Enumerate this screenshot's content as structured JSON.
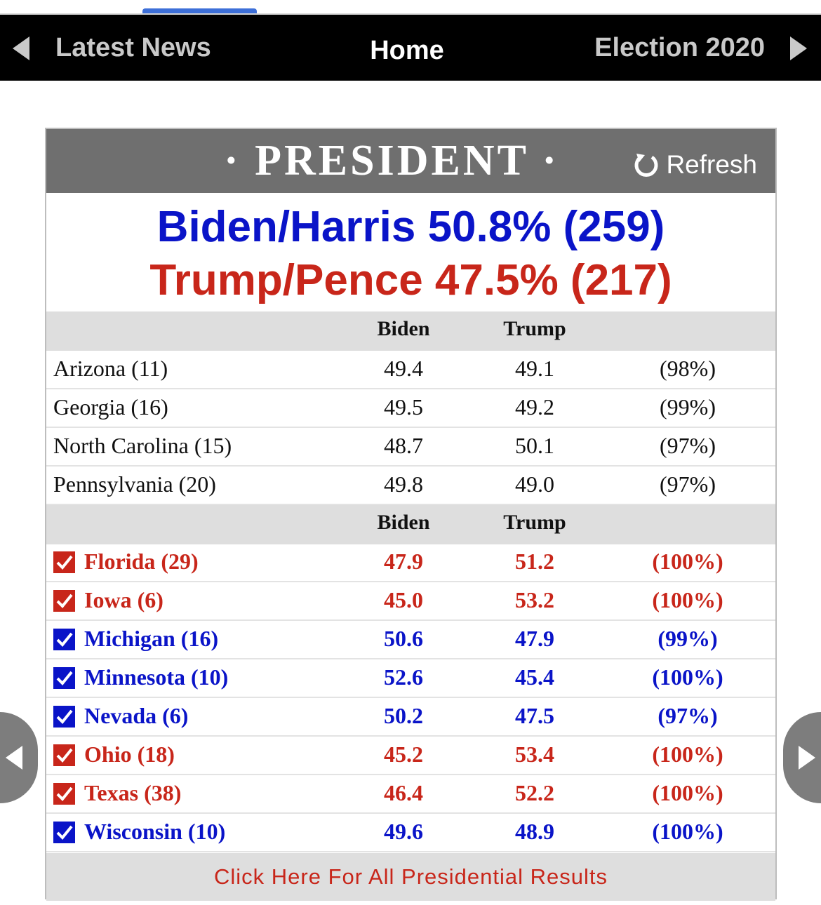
{
  "nav": {
    "left_label": "Latest News",
    "center_label": "Home",
    "right_label": "Election 2020"
  },
  "header": {
    "title": "· PRESIDENT ·",
    "refresh_label": "Refresh"
  },
  "headline": {
    "biden": "Biden/Harris 50.8% (259)",
    "trump": "Trump/Pence 47.5% (217)"
  },
  "columns": {
    "biden": "Biden",
    "trump": "Trump"
  },
  "pending_states": [
    {
      "state": "Arizona (11)",
      "biden": "49.4",
      "trump": "49.1",
      "reporting": "(98%)"
    },
    {
      "state": "Georgia (16)",
      "biden": "49.5",
      "trump": "49.2",
      "reporting": "(99%)"
    },
    {
      "state": "North Carolina (15)",
      "biden": "48.7",
      "trump": "50.1",
      "reporting": "(97%)"
    },
    {
      "state": "Pennsylvania (20)",
      "biden": "49.8",
      "trump": "49.0",
      "reporting": "(97%)"
    }
  ],
  "called_states": [
    {
      "state": "Florida (29)",
      "biden": "47.9",
      "trump": "51.2",
      "reporting": "(100%)",
      "winner": "red"
    },
    {
      "state": "Iowa (6)",
      "biden": "45.0",
      "trump": "53.2",
      "reporting": "(100%)",
      "winner": "red"
    },
    {
      "state": "Michigan (16)",
      "biden": "50.6",
      "trump": "47.9",
      "reporting": "(99%)",
      "winner": "blue"
    },
    {
      "state": "Minnesota (10)",
      "biden": "52.6",
      "trump": "45.4",
      "reporting": "(100%)",
      "winner": "blue"
    },
    {
      "state": "Nevada (6)",
      "biden": "50.2",
      "trump": "47.5",
      "reporting": "(97%)",
      "winner": "blue"
    },
    {
      "state": "Ohio (18)",
      "biden": "45.2",
      "trump": "53.4",
      "reporting": "(100%)",
      "winner": "red"
    },
    {
      "state": "Texas (38)",
      "biden": "46.4",
      "trump": "52.2",
      "reporting": "(100%)",
      "winner": "red"
    },
    {
      "state": "Wisconsin (10)",
      "biden": "49.6",
      "trump": "48.9",
      "reporting": "(100%)",
      "winner": "blue"
    }
  ],
  "footer": {
    "link_label": "Click Here For All Presidential Results"
  },
  "colors": {
    "democrat": "#0a14c8",
    "republican": "#c8261a",
    "header_gray": "#6f6f6f",
    "row_gray": "#dedede"
  }
}
